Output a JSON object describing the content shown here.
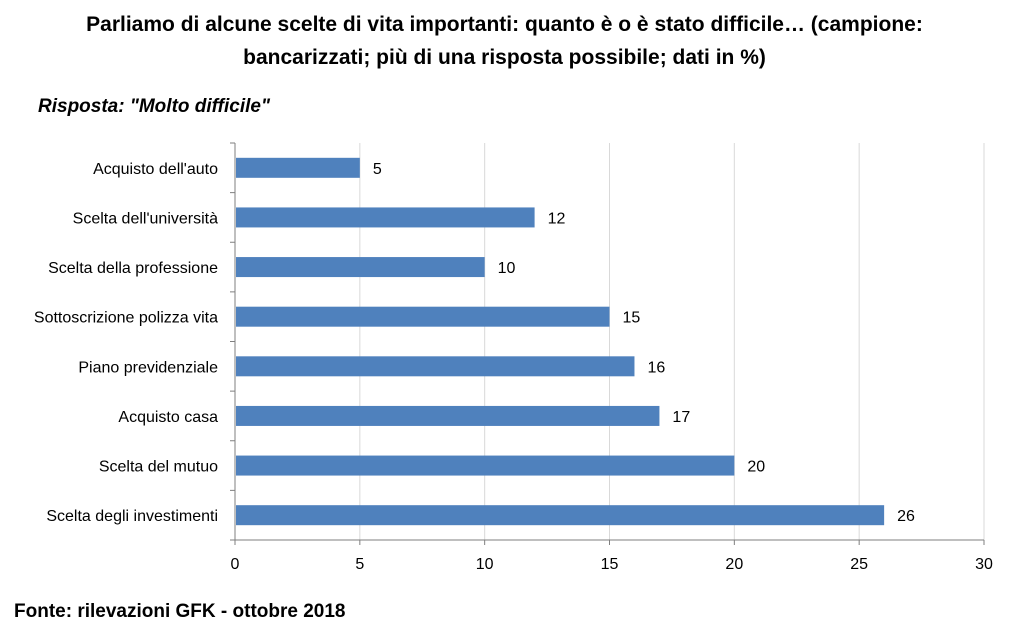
{
  "title_line1": "Parliamo di alcune scelte di vita importanti: quanto è o è stato difficile… (campione:",
  "title_line2": "bancarizzati; più di una risposta possibile; dati in %)",
  "subtitle": "Risposta: \"Molto difficile\"",
  "source": "Fonte: rilevazioni GFK - ottobre 2018",
  "chart_data": {
    "type": "bar",
    "orientation": "horizontal",
    "categories": [
      "Acquisto dell'auto",
      "Scelta dell'università",
      "Scelta della professione",
      "Sottoscrizione polizza vita",
      "Piano previdenziale",
      "Acquisto casa",
      "Scelta del mutuo",
      "Scelta degli investimenti"
    ],
    "values": [
      5,
      12,
      10,
      15,
      16,
      17,
      20,
      26
    ],
    "xlim": [
      0,
      30
    ],
    "xticks": [
      0,
      5,
      10,
      15,
      20,
      25,
      30
    ],
    "grid": true,
    "data_labels": true,
    "colors": {
      "bar": "#4f81bd",
      "grid": "#d9d9d9",
      "axis": "#7f7f7f"
    }
  }
}
